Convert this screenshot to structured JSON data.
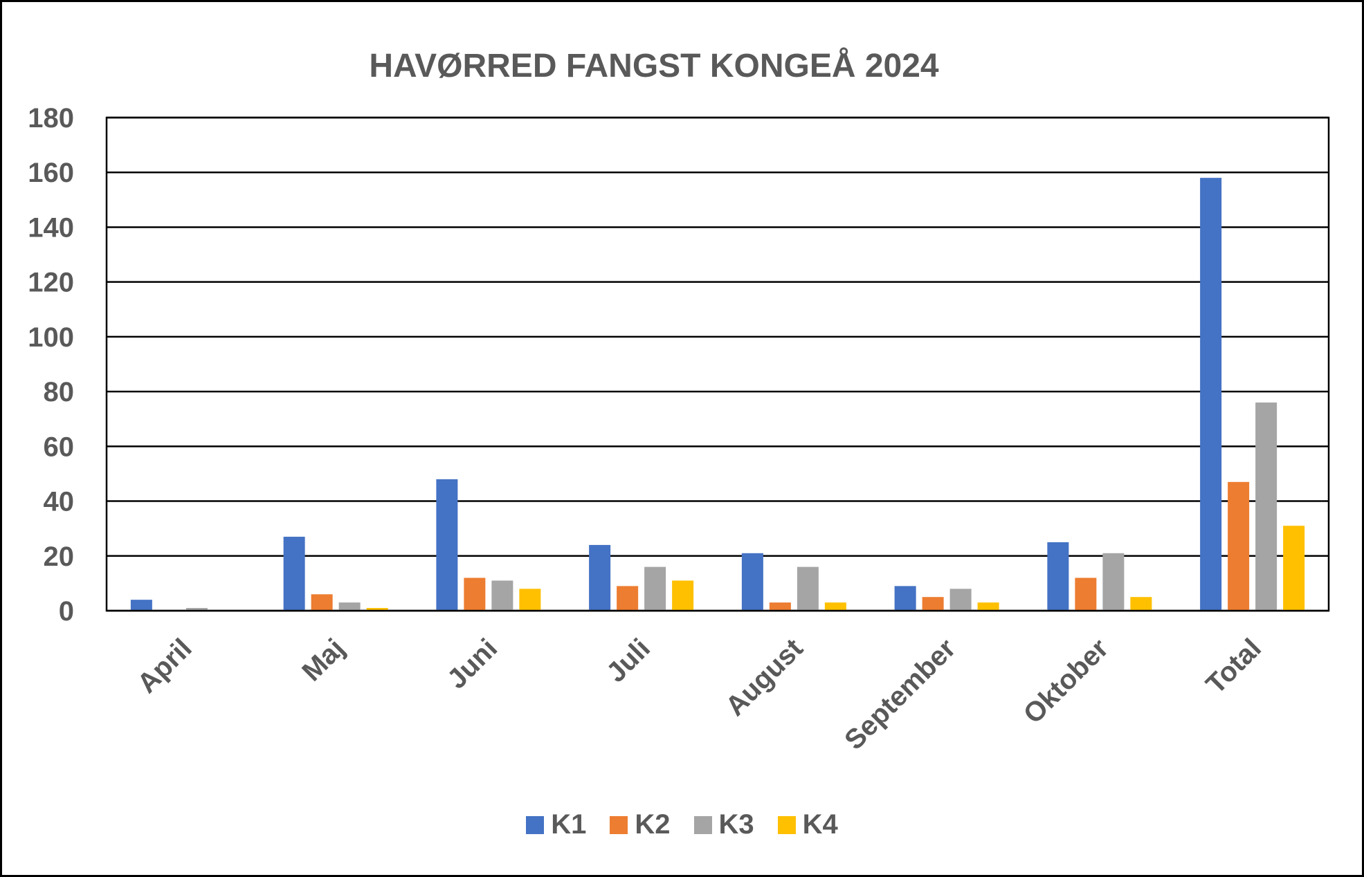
{
  "chart_data": {
    "type": "bar",
    "title": "HAVØRRED FANGST KONGEÅ 2024",
    "xlabel": "",
    "ylabel": "",
    "ylim": [
      0,
      180
    ],
    "yticks": [
      "0",
      "20",
      "40",
      "60",
      "80",
      "100",
      "120",
      "140",
      "160",
      "180"
    ],
    "grid": true,
    "legend_position": "bottom",
    "categories": [
      "April",
      "Maj",
      "Juni",
      "Juli",
      "August",
      "September",
      "Oktober",
      "Total"
    ],
    "series": [
      {
        "name": "K1",
        "color": "#4472C4",
        "values": [
          4,
          27,
          48,
          24,
          21,
          9,
          25,
          158
        ]
      },
      {
        "name": "K2",
        "color": "#ED7D31",
        "values": [
          0,
          6,
          12,
          9,
          3,
          5,
          12,
          47
        ]
      },
      {
        "name": "K3",
        "color": "#A5A5A5",
        "values": [
          1,
          3,
          11,
          16,
          16,
          8,
          21,
          76
        ]
      },
      {
        "name": "K4",
        "color": "#FFC000",
        "values": [
          0,
          1,
          8,
          11,
          3,
          3,
          5,
          31
        ]
      }
    ]
  }
}
